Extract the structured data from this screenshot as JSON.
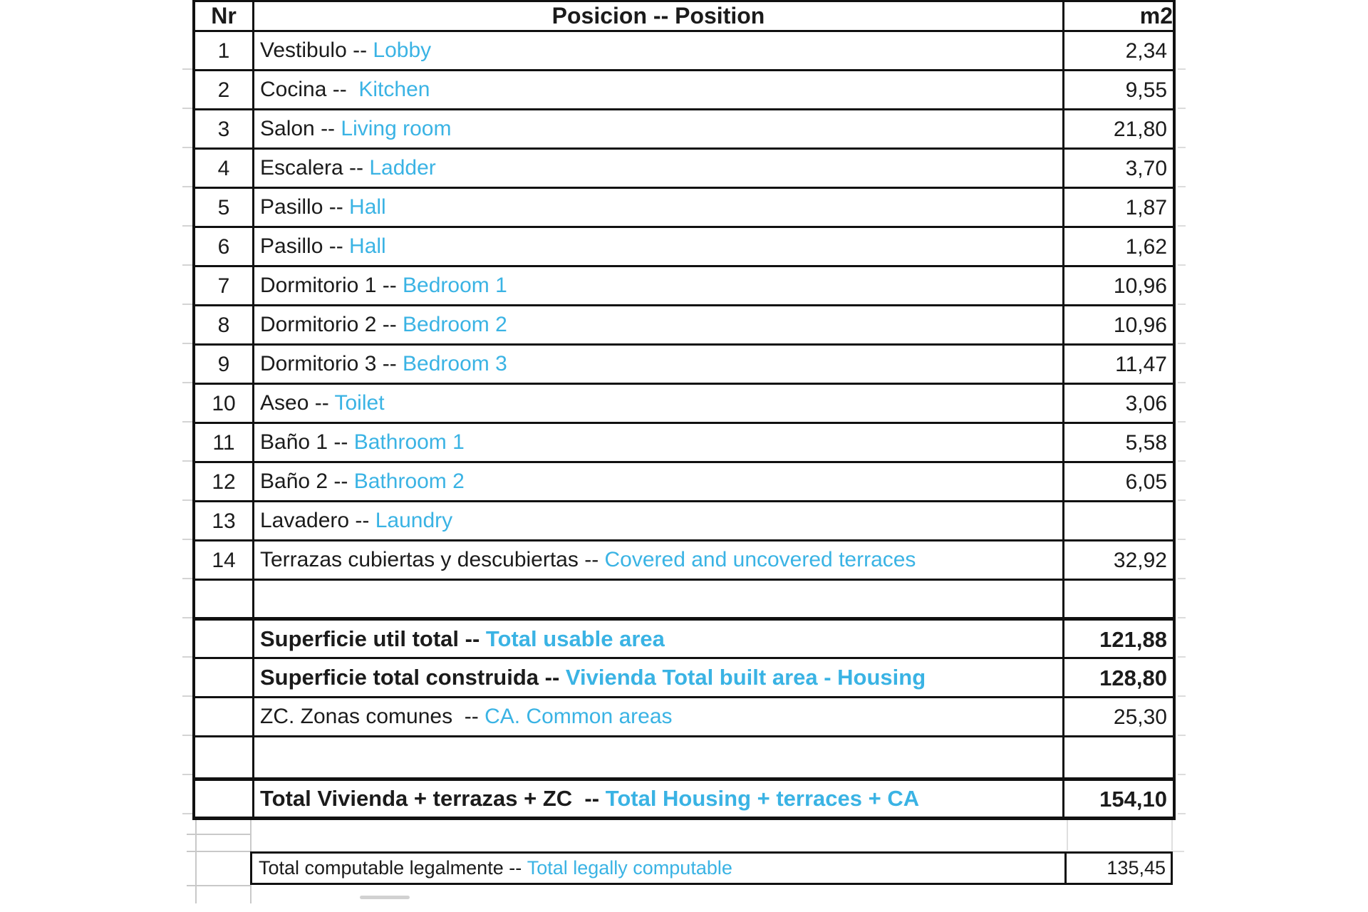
{
  "colors": {
    "accent_blue": "#3ab3e4",
    "ink": "#1b1b1b",
    "border_col": "#111111",
    "gridline": "#c9c9c9"
  },
  "header": {
    "nr": "Nr",
    "position": "Posicion -- Position",
    "m2": "m2"
  },
  "rows": [
    {
      "nr": "1",
      "es": "Vestibulo -- ",
      "en": "Lobby",
      "m2": "2,34",
      "bold": false
    },
    {
      "nr": "2",
      "es": "Cocina -- ",
      "en": " Kitchen",
      "m2": "9,55",
      "bold": false
    },
    {
      "nr": "3",
      "es": "Salon -- ",
      "en": "Living room",
      "m2": "21,80",
      "bold": false
    },
    {
      "nr": "4",
      "es": "Escalera -- ",
      "en": "Ladder",
      "m2": "3,70",
      "bold": false
    },
    {
      "nr": "5",
      "es": "Pasillo -- ",
      "en": "Hall",
      "m2": "1,87",
      "bold": false
    },
    {
      "nr": "6",
      "es": "Pasillo -- ",
      "en": "Hall",
      "m2": "1,62",
      "bold": false
    },
    {
      "nr": "7",
      "es": "Dormitorio 1 -- ",
      "en": "Bedroom 1",
      "m2": "10,96",
      "bold": false
    },
    {
      "nr": "8",
      "es": "Dormitorio 2 -- ",
      "en": "Bedroom 2",
      "m2": "10,96",
      "bold": false
    },
    {
      "nr": "9",
      "es": "Dormitorio 3 -- ",
      "en": "Bedroom 3",
      "m2": "11,47",
      "bold": false
    },
    {
      "nr": "10",
      "es": "Aseo -- ",
      "en": "Toilet",
      "m2": "3,06",
      "bold": false
    },
    {
      "nr": "11",
      "es": "Baño 1 -- ",
      "en": "Bathroom 1",
      "m2": "5,58",
      "bold": false
    },
    {
      "nr": "12",
      "es": "Baño 2 -- ",
      "en": "Bathroom 2",
      "m2": "6,05",
      "bold": false
    },
    {
      "nr": "13",
      "es": "Lavadero -- ",
      "en": "Laundry",
      "m2": "",
      "bold": false
    },
    {
      "nr": "14",
      "es": "Terrazas cubiertas y descubiertas -- ",
      "en": "Covered and uncovered terraces",
      "m2": "32,92",
      "bold": false
    },
    {
      "nr": "",
      "es": "",
      "en": "",
      "m2": "",
      "bold": false
    },
    {
      "nr": "",
      "es": "Superficie util total -- ",
      "en": "Total usable area",
      "m2": "121,88",
      "bold": true
    },
    {
      "nr": "",
      "es": "Superficie total construida -- ",
      "en": "Vivienda Total built area - Housing",
      "m2": "128,80",
      "bold": true
    },
    {
      "nr": "",
      "es": "ZC. Zonas comunes  -- ",
      "en": "CA. Common areas",
      "m2": "25,30",
      "bold": false
    },
    {
      "nr": "",
      "es": "",
      "en": "",
      "m2": "",
      "bold": false
    },
    {
      "nr": "",
      "es": "Total Vivienda + terrazas + ZC  -- ",
      "en": "Total Housing + terraces + CA",
      "m2": "154,10",
      "bold": true
    }
  ],
  "footer": {
    "es": "Total computable legalmente -- ",
    "en": "Total legally computable",
    "m2": "135,45"
  }
}
